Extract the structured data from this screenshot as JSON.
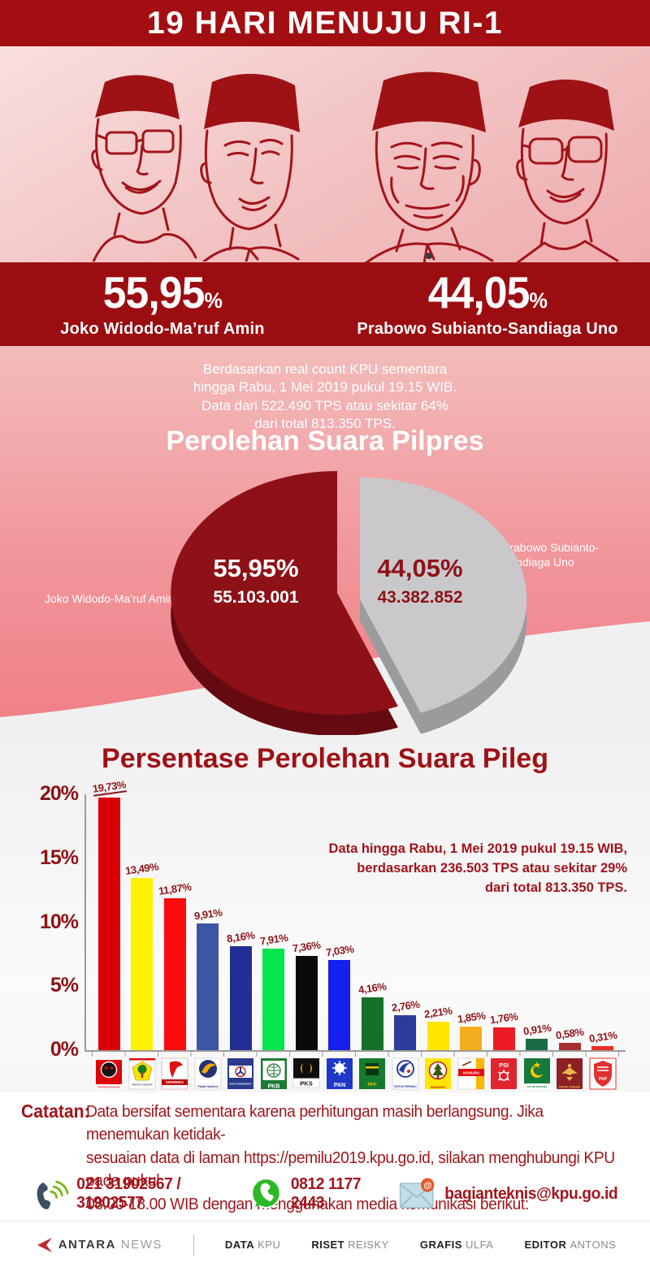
{
  "header": {
    "title": "19 HARI MENUJU RI-1"
  },
  "colors": {
    "accent_red": "#A30E13",
    "band_red": "#9B0D11",
    "dark_red_text": "#9E1216",
    "pie_red": "#8E1118",
    "pie_grey": "#C9C9CB"
  },
  "result_band": {
    "left": {
      "pct": "55,95",
      "pct_unit": "%",
      "name": "Joko Widodo-Ma’ruf Amin"
    },
    "right": {
      "pct": "44,05",
      "pct_unit": "%",
      "name": "Prabowo Subianto-Sandiaga Uno"
    }
  },
  "pilpres": {
    "note_lines": [
      "Berdasarkan real count KPU sementara",
      "hingga Rabu, 1 Mei 2019 pukul 19.15 WIB.",
      "Data dari 522.490 TPS atau sekitar 64%",
      "dari total 813.350 TPS."
    ],
    "heading": "Perolehan Suara Pilpres",
    "slice_left": {
      "pct": "55,95%",
      "votes": "55.103.001",
      "label": "Joko Widodo-Ma’ruf Amin"
    },
    "slice_right": {
      "pct": "44,05%",
      "votes": "43.382.852",
      "label": "Prabowo Subianto-Sandiaga Uno"
    }
  },
  "pileg": {
    "heading": "Persentase Perolehan Suara Pileg",
    "note_lines": [
      "Data hingga Rabu, 1 Mei 2019 pukul 19.15 WIB,",
      "berdasarkan 236.503 TPS atau sekitar 29%",
      "dari total 813.350 TPS."
    ],
    "yticks_display": [
      "20%",
      "15%",
      "10%",
      "5%",
      "0%"
    ]
  },
  "parties": {
    "items": [
      {
        "name": "PDI Perjuangan",
        "logo_text": "PDI PERJUANGAN"
      },
      {
        "name": "Partai Golkar",
        "logo_text": "PARTAI GOLKAR"
      },
      {
        "name": "Partai Gerindra",
        "logo_text": "GERINDRA"
      },
      {
        "name": "Partai NasDem",
        "logo_text": "Partai NasDem"
      },
      {
        "name": "Partai Demokrat",
        "logo_text": "PARTAI DEMOKRAT"
      },
      {
        "name": "Partai Kebangkitan Bangsa",
        "logo_text": "PKB"
      },
      {
        "name": "Partai Keadilan Sejahtera",
        "logo_text": "PKS"
      },
      {
        "name": "Partai Amanat Nasional",
        "logo_text": "PAN"
      },
      {
        "name": "Partai Persatuan Pembangunan",
        "logo_text": "PPP"
      },
      {
        "name": "Partai Perindo",
        "logo_text": "PARTAI PERINDO"
      },
      {
        "name": "Partai Berkarya",
        "logo_text": "BERKARYA"
      },
      {
        "name": "Partai Hanura",
        "logo_text": "HANURA"
      },
      {
        "name": "Partai Solidaritas Indonesia",
        "logo_text": "PSI"
      },
      {
        "name": "Partai Bulan Bintang",
        "logo_text": "BULAN BINTANG"
      },
      {
        "name": "Partai Garuda",
        "logo_text": "PARTAI GARUDA"
      },
      {
        "name": "PKPI",
        "logo_text": "PKP"
      }
    ]
  },
  "catatan": {
    "label": "Catatan:",
    "lines": [
      "Data bersifat sementara karena perhitungan masih berlangsung.  Jika menemukan ketidak-",
      "sesuaian data di laman https://pemilu2019.kpu.go.id, silakan menghubungi KPU pada pukul",
      "08.00-18.00 WIB dengan menggunakan media komunikasi berikut:"
    ]
  },
  "contacts": {
    "phone": "021 31902567 / 31902577",
    "whatsapp": "0812 1177 2443",
    "email": "bagianteknis@kpu.go.id"
  },
  "footer": {
    "brand_primary": "ANTARA",
    "brand_secondary": "NEWS",
    "credits": [
      {
        "label": "DATA",
        "value": "KPU"
      },
      {
        "label": "RISET",
        "value": "REISKY"
      },
      {
        "label": "GRAFIS",
        "value": "ULFA"
      },
      {
        "label": "EDITOR",
        "value": "ANTONS"
      }
    ]
  },
  "chart_data": [
    {
      "type": "pie",
      "title": "Perolehan Suara Pilpres",
      "labels": [
        "Joko Widodo-Ma’ruf Amin",
        "Prabowo Subianto-Sandiaga Uno"
      ],
      "values": [
        55.95,
        44.05
      ],
      "votes": [
        55103001,
        43382852
      ],
      "display_pct": [
        "55,95%",
        "44,05%"
      ],
      "display_votes": [
        "55.103.001",
        "43.382.852"
      ],
      "colors": [
        "#8E1118",
        "#C9C9CB"
      ],
      "style": "3d-exploded",
      "note": "Berdasarkan real count KPU sementara hingga Rabu, 1 Mei 2019 pukul 19.15 WIB. Data dari 522.490 TPS atau sekitar 64% dari total 813.350 TPS."
    },
    {
      "type": "bar",
      "title": "Persentase Perolehan Suara Pileg",
      "categories": [
        "PDI Perjuangan",
        "Partai Golkar",
        "Partai Gerindra",
        "Partai NasDem",
        "Partai Demokrat",
        "PKB",
        "PKS",
        "PAN",
        "PPP",
        "Partai Perindo",
        "Partai Berkarya",
        "Partai Hanura",
        "PSI",
        "PBB",
        "Partai Garuda",
        "PKPI"
      ],
      "values": [
        19.73,
        13.49,
        11.87,
        9.91,
        8.16,
        7.91,
        7.36,
        7.03,
        4.16,
        2.76,
        2.21,
        1.85,
        1.76,
        0.91,
        0.58,
        0.31
      ],
      "labels": [
        "19,73%",
        "13,49%",
        "11,87%",
        "9,91%",
        "8,16%",
        "7,91%",
        "7,36%",
        "7,03%",
        "4,16%",
        "2,76%",
        "2,21%",
        "1,85%",
        "1,76%",
        "0,91%",
        "0,58%",
        "0,31%"
      ],
      "colors": [
        "#DB0007",
        "#FFF100",
        "#FB0B0B",
        "#3D55A5",
        "#232E95",
        "#00E44C",
        "#0A0A0A",
        "#1520EE",
        "#15702C",
        "#2B3C9C",
        "#FFE500",
        "#F2AE1E",
        "#ED1C24",
        "#1A6C45",
        "#A62F32",
        "#EE2D24"
      ],
      "xlabel": "",
      "ylabel": "",
      "ylim": [
        0,
        20
      ],
      "yticks": [
        "0%",
        "5%",
        "10%",
        "15%",
        "20%"
      ],
      "grid": false,
      "legend": "none",
      "note": "Data hingga Rabu, 1 Mei 2019 pukul 19.15 WIB, berdasarkan 236.503 TPS atau sekitar 29% dari total 813.350 TPS."
    }
  ]
}
